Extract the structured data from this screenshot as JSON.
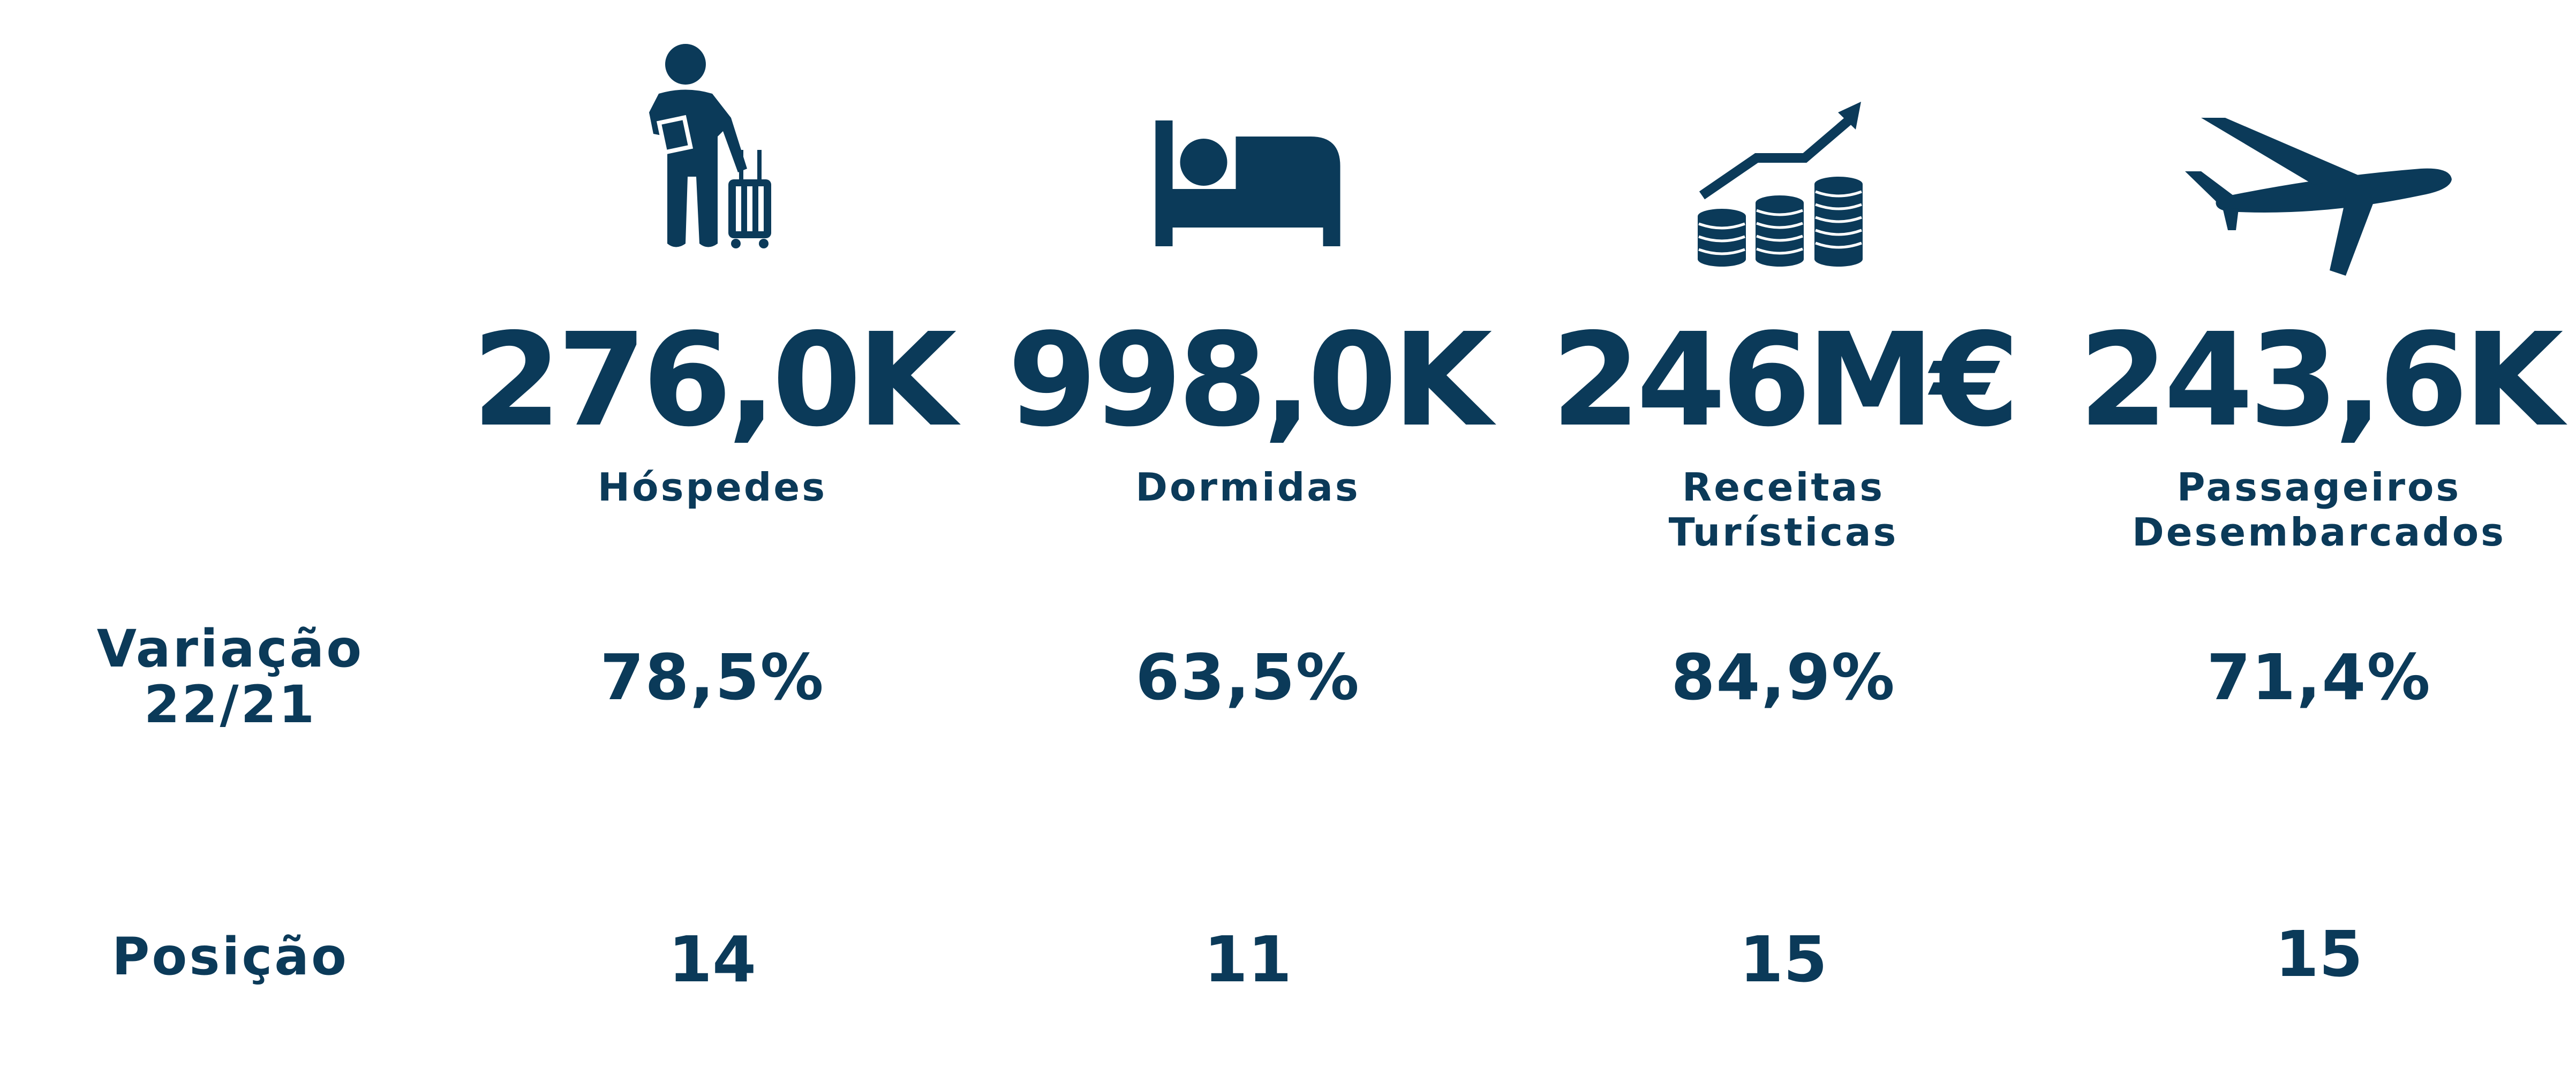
{
  "colors": {
    "primary": "#0b3a59",
    "background": "#ffffff"
  },
  "row_labels": {
    "variacao_line1": "Variação",
    "variacao_line2": "22/21",
    "posicao": "Posição"
  },
  "metrics": [
    {
      "icon": "traveler-with-luggage-icon",
      "value": "276,0K",
      "label_line1": "Hóspedes",
      "label_line2": "",
      "variation": "78,5%",
      "position": "14"
    },
    {
      "icon": "bed-icon",
      "value": "998,0K",
      "label_line1": "Dormidas",
      "label_line2": "",
      "variation": "63,5%",
      "position": "11"
    },
    {
      "icon": "revenue-coins-arrow-icon",
      "value": "246M€",
      "label_line1": "Receitas",
      "label_line2": "Turísticas",
      "variation": "84,9%",
      "position": "15"
    },
    {
      "icon": "airplane-icon",
      "value": "243,6K",
      "label_line1": "Passageiros",
      "label_line2": "Desembarcados",
      "variation": "71,4%",
      "position": "15"
    }
  ]
}
